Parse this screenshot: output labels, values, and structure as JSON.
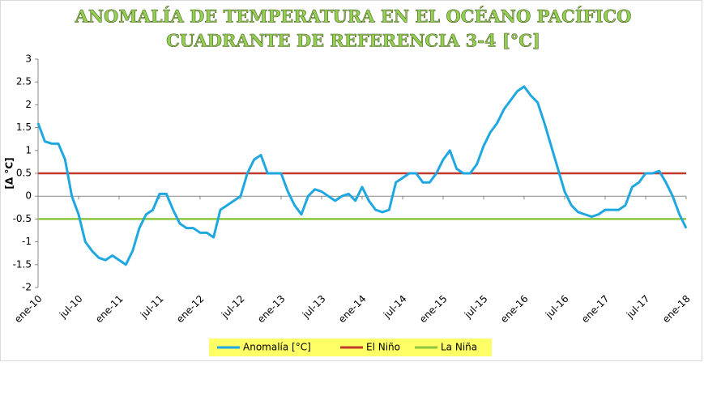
{
  "chart_data": {
    "type": "line",
    "title": [
      "ANOMALÍA DE TEMPERATURA EN EL OCÉANO PACÍFICO",
      "CUADRANTE DE REFERENCIA 3-4 [°C]"
    ],
    "y_label": "[Δ °C]",
    "categories": [
      "ene-10",
      null,
      null,
      null,
      null,
      null,
      "jul-10",
      null,
      null,
      null,
      null,
      null,
      "ene-11",
      null,
      null,
      null,
      null,
      null,
      "jul-11",
      null,
      null,
      null,
      null,
      null,
      "ene-12",
      null,
      null,
      null,
      null,
      null,
      "jul-12",
      null,
      null,
      null,
      null,
      null,
      "ene-13",
      null,
      null,
      null,
      null,
      null,
      "jul-13",
      null,
      null,
      null,
      null,
      null,
      "ene-14",
      null,
      null,
      null,
      null,
      null,
      "jul-14",
      null,
      null,
      null,
      null,
      null,
      "ene-15",
      null,
      null,
      null,
      null,
      null,
      "jul-15",
      null,
      null,
      null,
      null,
      null,
      "ene-16",
      null,
      null,
      null,
      null,
      null,
      "jul-16",
      null,
      null,
      null,
      null,
      null,
      "ene-17",
      null,
      null,
      null,
      null,
      null,
      "jul-17",
      null,
      null,
      null,
      null,
      null,
      "ene-18"
    ],
    "series": [
      {
        "name": "Anomalía [°C]",
        "color": "#1ea7e1",
        "values": [
          1.6,
          1.2,
          1.15,
          1.15,
          0.8,
          0.0,
          -0.4,
          -1.0,
          -1.2,
          -1.35,
          -1.4,
          -1.3,
          -1.4,
          -1.5,
          -1.2,
          -0.7,
          -0.4,
          -0.3,
          0.05,
          0.05,
          -0.3,
          -0.6,
          -0.7,
          -0.7,
          -0.8,
          -0.8,
          -0.9,
          -0.3,
          -0.2,
          -0.1,
          0.0,
          0.5,
          0.8,
          0.9,
          0.5,
          0.5,
          0.5,
          0.1,
          -0.2,
          -0.4,
          0.0,
          0.15,
          0.1,
          0.0,
          -0.1,
          0.0,
          0.05,
          -0.1,
          0.2,
          -0.1,
          -0.3,
          -0.35,
          -0.3,
          0.3,
          0.4,
          0.5,
          0.5,
          0.3,
          0.3,
          0.5,
          0.8,
          1.0,
          0.6,
          0.5,
          0.5,
          0.7,
          1.1,
          1.4,
          1.6,
          1.9,
          2.1,
          2.3,
          2.4,
          2.2,
          2.05,
          1.6,
          1.1,
          0.6,
          0.1,
          -0.2,
          -0.35,
          -0.4,
          -0.45,
          -0.4,
          -0.3,
          -0.3,
          -0.3,
          -0.2,
          0.2,
          0.3,
          0.5,
          0.5,
          0.55,
          0.3,
          0.0,
          -0.4,
          -0.7
        ]
      }
    ],
    "reference_lines": [
      {
        "name": "El Niño",
        "color": "#c0392b",
        "value": 0.5
      },
      {
        "name": "La Niña",
        "color": "#8dc63f",
        "value": -0.5
      }
    ],
    "ylim": [
      -2,
      3
    ],
    "yticks": [
      -2,
      -1.5,
      -1,
      -0.5,
      0,
      0.5,
      1,
      1.5,
      2,
      2.5,
      3
    ],
    "legend_color": "#ffff66"
  }
}
